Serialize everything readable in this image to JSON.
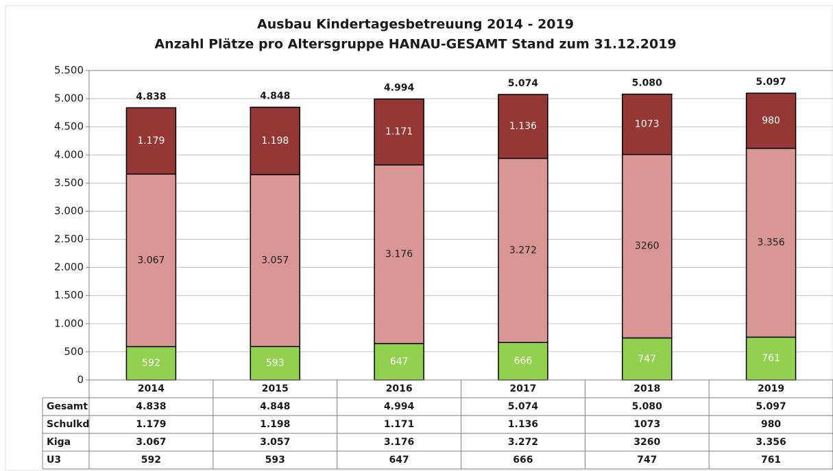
{
  "chart_data": {
    "type": "stacked_bar",
    "title": "Ausbau Kindertagesbetreuung 2014 - 2019",
    "subtitle": "Anzahl Plätze pro Altersgruppe HANAU-GESAMT Stand zum  31.12.2019",
    "categories": [
      "2014",
      "2015",
      "2016",
      "2017",
      "2018",
      "2019"
    ],
    "series": [
      {
        "name": "U3",
        "color": "#92d050",
        "label_color": "#ffffff",
        "values": [
          592,
          593,
          647,
          666,
          747,
          761
        ],
        "value_labels": [
          "592",
          "593",
          "647",
          "666",
          "747",
          "761"
        ]
      },
      {
        "name": "Kiga",
        "color": "#d99694",
        "label_color": "#1a1a1a",
        "values": [
          3067,
          3057,
          3176,
          3272,
          3260,
          3356
        ],
        "value_labels": [
          "3.067",
          "3.057",
          "3.176",
          "3.272",
          "3260",
          "3.356"
        ]
      },
      {
        "name": "Schulkd",
        "color": "#953735",
        "label_color": "#ffffff",
        "values": [
          1179,
          1198,
          1171,
          1136,
          1073,
          980
        ],
        "value_labels": [
          "1.179",
          "1.198",
          "1.171",
          "1.136",
          "1073",
          "980"
        ]
      }
    ],
    "totals": {
      "name": "Gesamt",
      "values": [
        4838,
        4848,
        4994,
        5074,
        5080,
        5097
      ],
      "value_labels": [
        "4.838",
        "4.848",
        "4.994",
        "5.074",
        "5.080",
        "5.097"
      ]
    },
    "ylim": [
      0,
      5500
    ],
    "yticks": [
      0,
      500,
      {
        "value": 1000,
        "label": "1.000"
      },
      {
        "value": 1500,
        "label": "1.500"
      },
      {
        "value": 2000,
        "label": "2.000"
      },
      {
        "value": 2500,
        "label": "2.500"
      },
      {
        "value": 3000,
        "label": "3.000"
      },
      {
        "value": 3500,
        "label": "3.500"
      },
      {
        "value": 4000,
        "label": "4.000"
      },
      {
        "value": 4500,
        "label": "4.500"
      },
      {
        "value": 5000,
        "label": "5.000"
      },
      {
        "value": 5500,
        "label": "5.500"
      }
    ],
    "grid": true
  }
}
